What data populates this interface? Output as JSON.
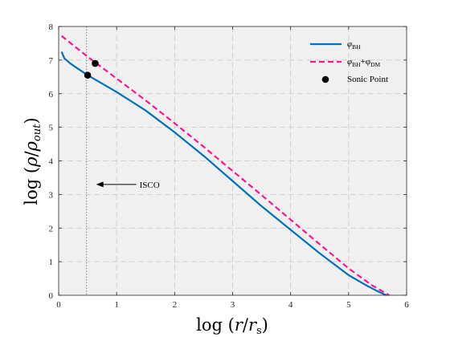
{
  "chart_data": {
    "type": "line",
    "title": "",
    "xlabel": "log (r/r_s)",
    "ylabel": "log (ρ/ρ_out)",
    "xlim": [
      0,
      6
    ],
    "ylim": [
      0,
      8
    ],
    "xticks": [
      0,
      1,
      2,
      3,
      4,
      5,
      6
    ],
    "yticks": [
      0,
      1,
      2,
      3,
      4,
      5,
      6,
      7,
      8
    ],
    "grid": true,
    "legend_position": "top-right",
    "series": [
      {
        "name": "φ_BH",
        "style": "solid",
        "color": "#0072BD",
        "x": [
          0.05,
          0.1,
          0.2,
          0.3,
          0.5,
          0.75,
          1.0,
          1.5,
          2.0,
          2.5,
          3.0,
          3.5,
          4.0,
          4.5,
          5.0,
          5.3,
          5.5,
          5.65
        ],
        "y": [
          7.25,
          7.05,
          6.9,
          6.78,
          6.55,
          6.3,
          6.05,
          5.5,
          4.85,
          4.15,
          3.4,
          2.65,
          1.95,
          1.25,
          0.6,
          0.3,
          0.12,
          0.0
        ]
      },
      {
        "name": "φ_BH+φ_DM",
        "style": "dashed",
        "color": "#FF1493",
        "x": [
          0.05,
          0.5,
          1.0,
          1.5,
          2.0,
          2.5,
          3.0,
          3.5,
          4.0,
          4.5,
          5.0,
          5.4,
          5.7
        ],
        "y": [
          7.72,
          7.1,
          6.45,
          5.8,
          5.12,
          4.42,
          3.7,
          2.98,
          2.25,
          1.52,
          0.8,
          0.3,
          0.0
        ]
      },
      {
        "name": "Sonic Point",
        "style": "markers",
        "color": "#000000",
        "x": [
          0.5,
          0.63
        ],
        "y": [
          6.55,
          6.9
        ]
      }
    ],
    "annotations": [
      {
        "text": "ISCO",
        "arrow": "left",
        "points_to_x": 0.48,
        "y": 3.3
      }
    ],
    "reference_lines": [
      {
        "orientation": "vertical",
        "x": 0.48,
        "style": "dotted",
        "color": "#808080"
      }
    ],
    "legend": [
      {
        "label_main": "φ",
        "label_sub": "BH",
        "label_main2": "",
        "label_sub2": "",
        "style": "solid",
        "color": "#0072BD"
      },
      {
        "label_main": "φ",
        "label_sub": "BH",
        "label_main2": "+φ",
        "label_sub2": "DM",
        "style": "dashed",
        "color": "#FF1493"
      },
      {
        "label_main": "Sonic Point",
        "label_sub": "",
        "label_main2": "",
        "label_sub2": "",
        "style": "marker",
        "color": "#000000"
      }
    ],
    "axis_text": {
      "x_main": "log",
      "x_r": "r",
      "x_rs_main": "r",
      "x_rs_sub": "s",
      "y_main": "log",
      "y_rho": "ρ",
      "y_rho_out_main": "ρ",
      "y_rho_out_sub": "out"
    },
    "colors": {
      "plot_background": "#F0F0F0",
      "grid": "#C8C8C8",
      "axes": "#262626"
    }
  }
}
